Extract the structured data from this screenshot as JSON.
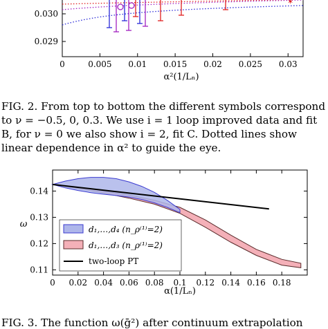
{
  "figure2": {
    "xlabel": "α²(1/Lₙ)",
    "xlim": [
      0,
      0.032
    ],
    "ylim_visible": [
      0.0285,
      0.031
    ],
    "x_ticks": [
      "0",
      "0.005",
      "0.01",
      "0.015",
      "0.02",
      "0.025",
      "0.03"
    ],
    "y_ticks": [
      "0.030",
      "0.029"
    ],
    "series_colors": {
      "blue": "#2a2ad8",
      "purple": "#a020c0",
      "red": "#e02020"
    }
  },
  "caption2": {
    "lines": [
      "FIG. 2.   From top to bottom the different symbols correspond",
      "to ν = −0.5, 0, 0.3.  We use i = 1 loop improved data and fit",
      "B, for ν = 0 we also show i = 2, fit C. Dotted lines show",
      "linear dependence in α² to guide the eye."
    ]
  },
  "chart_data": {
    "type": "area",
    "xlabel": "α(1/Lₙ)",
    "ylabel": "ω",
    "xlim": [
      0,
      0.2
    ],
    "ylim": [
      0.108,
      0.148
    ],
    "x_ticks": [
      "0",
      "0.02",
      "0.04",
      "0.06",
      "0.08",
      "0.1",
      "0.12",
      "0.14",
      "0.16",
      "0.18"
    ],
    "y_ticks": [
      "0.14",
      "0.13",
      "0.12",
      "0.11"
    ],
    "legend_position": "bottom-left",
    "series": [
      {
        "name": "d₁,…,d₄ (n_ρ⁽¹⁾=2)",
        "color": "#3a3ad0",
        "fill": "#aeb6ea",
        "x": [
          0,
          0.01,
          0.02,
          0.03,
          0.04,
          0.05,
          0.06,
          0.07,
          0.08,
          0.09,
          0.1
        ],
        "upper": [
          0.1425,
          0.1438,
          0.1447,
          0.1452,
          0.1452,
          0.1447,
          0.1435,
          0.1418,
          0.1395,
          0.1365,
          0.133
        ],
        "lower": [
          0.1425,
          0.1412,
          0.1402,
          0.1394,
          0.1388,
          0.1383,
          0.1377,
          0.1368,
          0.1355,
          0.1338,
          0.1318
        ]
      },
      {
        "name": "d₁,…,d₃ (n_ρ⁽¹⁾=2)",
        "color": "#5a2a2a",
        "fill": "#f4b0b8",
        "x": [
          0,
          0.02,
          0.04,
          0.06,
          0.08,
          0.1,
          0.12,
          0.14,
          0.16,
          0.18,
          0.195
        ],
        "upper": [
          0.1425,
          0.1415,
          0.14,
          0.1385,
          0.1365,
          0.1338,
          0.129,
          0.1232,
          0.1178,
          0.114,
          0.1125
        ],
        "lower": [
          0.1425,
          0.141,
          0.1393,
          0.1373,
          0.135,
          0.1315,
          0.1262,
          0.1205,
          0.1155,
          0.1118,
          0.1108
        ]
      },
      {
        "name": "two-loop PT",
        "color": "#000000",
        "x": [
          0,
          0.17
        ],
        "y": [
          0.1425,
          0.1332
        ]
      }
    ]
  },
  "caption3": {
    "text": "FIG. 3.   The function ω(ḡ²) after continuum extrapolation"
  }
}
